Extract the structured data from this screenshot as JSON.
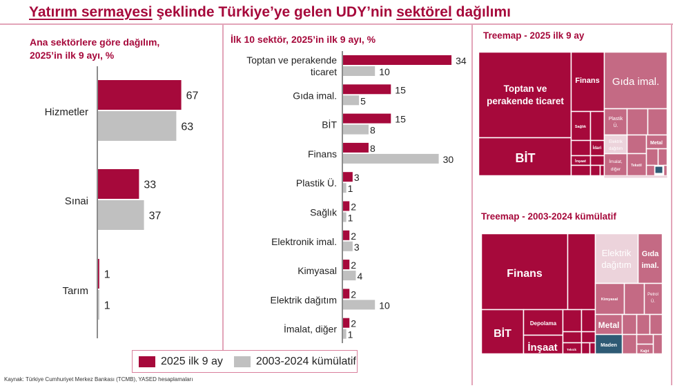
{
  "title": {
    "part1": "Yatırım sermayesi",
    "part2": " şeklinde Türkiye’ye gelen UDY’nin ",
    "part3": "sektörel",
    "part4": " dağılımı"
  },
  "colors": {
    "primary": "#a6093b",
    "secondary": "#c0c0c0",
    "light_pink": "#c46a84",
    "pale_pink": "#ecd3db",
    "navy": "#2e5a74",
    "frame": "#e2a4b8"
  },
  "legend": {
    "series1": "2025 ilk 9 ay",
    "series2": "2003-2024 kümülatif"
  },
  "source": "Kaynak: Türkiye Cumhuriyet Merkez Bankası (TCMB), YASED hesaplamaları",
  "chart_data": [
    {
      "type": "bar",
      "orientation": "horizontal",
      "title_line1": "Ana sektörlere göre dağılım,",
      "title_line2": "2025’in ilk 9 ayı, %",
      "categories": [
        "Hizmetler",
        "Sınai",
        "Tarım"
      ],
      "series": [
        {
          "name": "2025 ilk 9 ay",
          "values": [
            67,
            33,
            1
          ]
        },
        {
          "name": "2003-2024 kümülatif",
          "values": [
            63,
            37,
            1
          ]
        }
      ],
      "xlim": [
        0,
        100
      ],
      "grid": false,
      "data_labels": true
    },
    {
      "type": "bar",
      "orientation": "horizontal",
      "title": "İlk 10 sektör, 2025’in ilk 9 ayı, %",
      "categories": [
        [
          "Toptan ve perakende",
          "ticaret"
        ],
        [
          "Gıda imal."
        ],
        [
          "BİT"
        ],
        [
          "Finans"
        ],
        [
          "Plastik Ü."
        ],
        [
          "Sağlık"
        ],
        [
          "Elektronik imal."
        ],
        [
          "Kimyasal"
        ],
        [
          "Elektrik dağıtım"
        ],
        [
          "İmalat, diğer"
        ]
      ],
      "series": [
        {
          "name": "2025 ilk 9 ay",
          "values": [
            34,
            15,
            15,
            8,
            3,
            2,
            2,
            2,
            2,
            2
          ]
        },
        {
          "name": "2003-2024 kümülatif",
          "values": [
            10,
            5,
            8,
            30,
            1,
            1,
            3,
            4,
            10,
            1
          ]
        }
      ],
      "xlim": [
        0,
        40
      ],
      "grid": false,
      "data_labels": true
    },
    {
      "type": "treemap",
      "title": "Treemap - 2025 ilk 9 ay",
      "labels": [
        "Toptan ve",
        "perakende ticaret",
        "BİT",
        "Finans",
        "Gıda imal.",
        "Plastik",
        "Ü.",
        "Sağlık",
        "İdari",
        "İnşaat",
        "Elektrik",
        "dağıtım",
        "İmalat,",
        "diğer",
        "Tekstil",
        "Metal"
      ]
    },
    {
      "type": "treemap",
      "title": "Treemap - 2003-2024 kümülatif",
      "labels": [
        "Finans",
        "BİT",
        "Depolama",
        "İnşaat",
        "Teknik",
        "Elektrik",
        "dağıtım",
        "Gıda",
        "imal.",
        "Kimyasal",
        "Petrol",
        "Ü.",
        "Metal",
        "Maden",
        "Kağıt"
      ]
    }
  ]
}
